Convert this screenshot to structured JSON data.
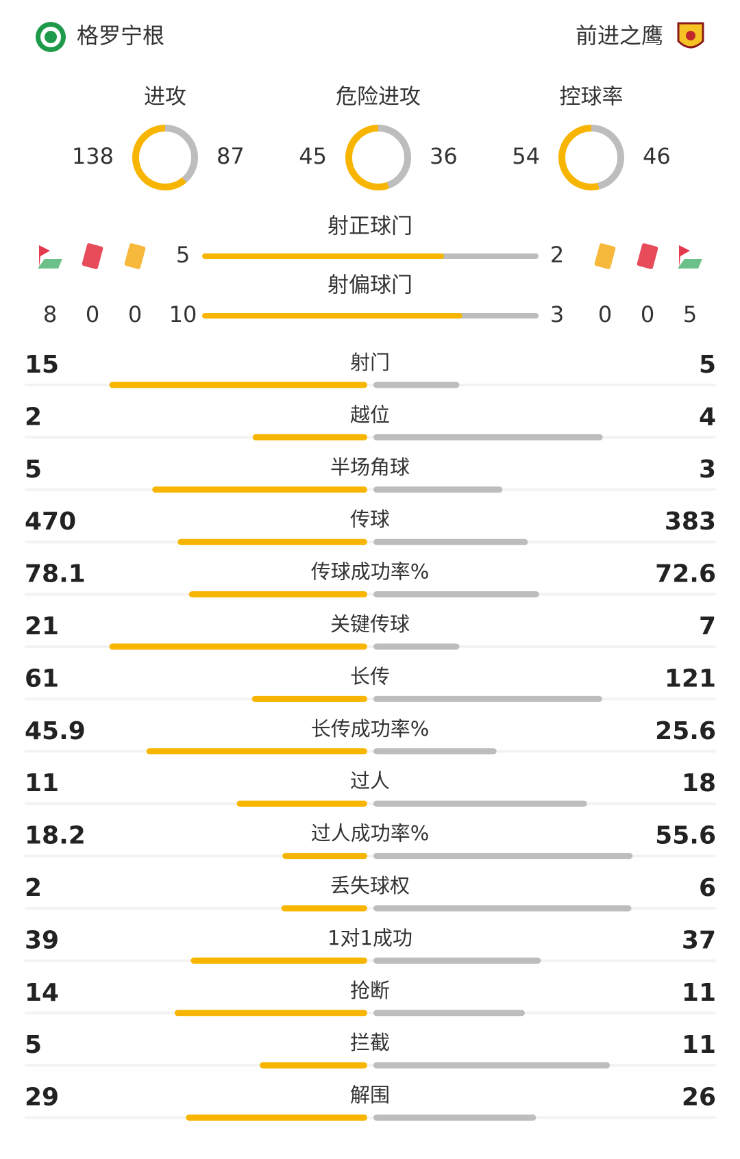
{
  "teams": {
    "home": "格罗宁根",
    "away": "前进之鹰"
  },
  "rings": [
    {
      "label": "进攻",
      "home": 138,
      "away": 87
    },
    {
      "label": "危险进攻",
      "home": 45,
      "away": 36
    },
    {
      "label": "控球率",
      "home": 54,
      "away": 46
    }
  ],
  "shot_bars": [
    {
      "label": "射正球门",
      "home": 5,
      "away": 2
    },
    {
      "label": "射偏球门",
      "home": 10,
      "away": 3
    }
  ],
  "cards": {
    "home": {
      "corners": 8,
      "red": 0,
      "yellow": 0
    },
    "away": {
      "yellow": 0,
      "red": 0,
      "corners": 5
    }
  },
  "stats": [
    {
      "label": "射门",
      "home": 15,
      "away": 5
    },
    {
      "label": "越位",
      "home": 2,
      "away": 4
    },
    {
      "label": "半场角球",
      "home": 5,
      "away": 3
    },
    {
      "label": "传球",
      "home": 470,
      "away": 383
    },
    {
      "label": "传球成功率%",
      "home": 78.1,
      "away": 72.6
    },
    {
      "label": "关键传球",
      "home": 21,
      "away": 7
    },
    {
      "label": "长传",
      "home": 61,
      "away": 121
    },
    {
      "label": "长传成功率%",
      "home": 45.9,
      "away": 25.6
    },
    {
      "label": "过人",
      "home": 11,
      "away": 18
    },
    {
      "label": "过人成功率%",
      "home": 18.2,
      "away": 55.6
    },
    {
      "label": "丢失球权",
      "home": 2,
      "away": 6
    },
    {
      "label": "1对1成功",
      "home": 39,
      "away": 37
    },
    {
      "label": "抢断",
      "home": 14,
      "away": 11
    },
    {
      "label": "拦截",
      "home": 5,
      "away": 11
    },
    {
      "label": "解围",
      "home": 29,
      "away": 26
    }
  ]
}
